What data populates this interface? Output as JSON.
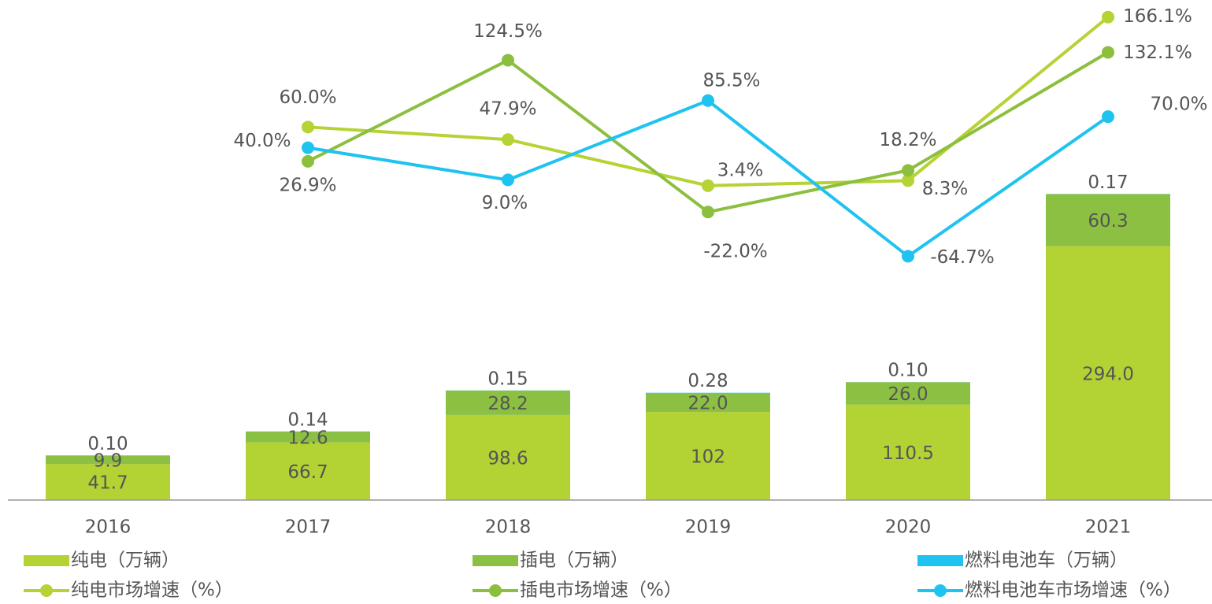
{
  "chart_data": {
    "type": "bar",
    "categories": [
      "2016",
      "2017",
      "2018",
      "2019",
      "2020",
      "2021"
    ],
    "ylim": [
      0,
      570
    ],
    "y2lim": [
      -300,
      175
    ],
    "series": [
      {
        "name": "纯电（万辆）",
        "type": "bar",
        "color": "#b3d234",
        "values": [
          41.7,
          66.7,
          98.6,
          102,
          110.5,
          294.0
        ],
        "value_labels": [
          "41.7",
          "66.7",
          "98.6",
          "102",
          "110.5",
          "294.0"
        ]
      },
      {
        "name": "插电（万辆）",
        "type": "bar",
        "color": "#8cc043",
        "values": [
          9.9,
          12.6,
          28.2,
          22.0,
          26.0,
          60.3
        ],
        "value_labels": [
          "9.9",
          "12.6",
          "28.2",
          "22.0",
          "26.0",
          "60.3"
        ]
      },
      {
        "name": "燃料电池车（万辆）",
        "type": "bar",
        "color": "#1ec4ef",
        "values": [
          0.1,
          0.14,
          0.15,
          0.28,
          0.1,
          0.17
        ],
        "value_labels": [
          "0.10",
          "0.14",
          "0.15",
          "0.28",
          "0.10",
          "0.17"
        ]
      },
      {
        "name": "纯电市场增速（%）",
        "type": "line",
        "axis": "y2",
        "color": "#b5d334",
        "values": [
          null,
          60.0,
          47.9,
          3.4,
          8.3,
          166.1
        ],
        "value_labels": [
          null,
          "60.0%",
          "47.9%",
          "3.4%",
          "8.3%",
          "166.1%"
        ]
      },
      {
        "name": "插电市场增速（%）",
        "type": "line",
        "axis": "y2",
        "color": "#8dbf3f",
        "values": [
          null,
          26.9,
          124.5,
          -22.0,
          18.2,
          132.1
        ],
        "value_labels": [
          null,
          "26.9%",
          "124.5%",
          "-22.0%",
          "18.2%",
          "132.1%"
        ]
      },
      {
        "name": "燃料电池车市场增速（%）",
        "type": "line",
        "axis": "y2",
        "color": "#1fc3ef",
        "values": [
          null,
          40.0,
          9.0,
          85.5,
          -64.7,
          70.0
        ],
        "value_labels": [
          null,
          "40.0%",
          "9.0%",
          "85.5%",
          "-64.7%",
          "70.0%"
        ]
      }
    ]
  }
}
